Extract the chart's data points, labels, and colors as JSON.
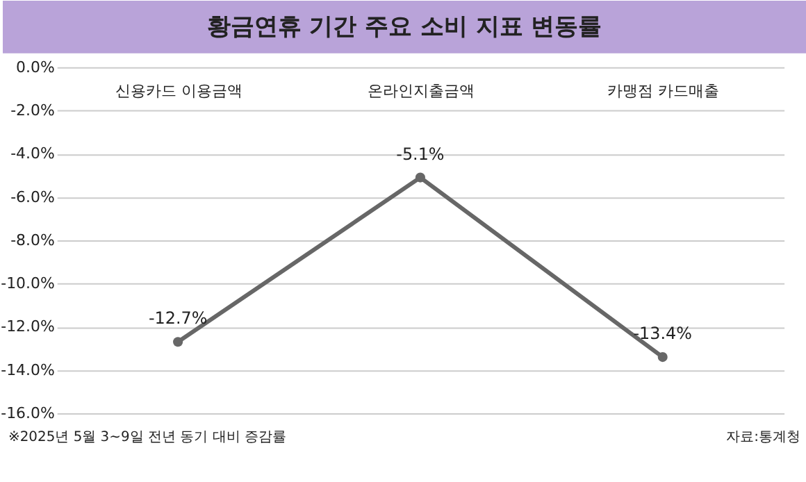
{
  "chart_data": {
    "type": "line",
    "title": "황금연휴 기간 주요 소비 지표 변동률",
    "categories": [
      "신용카드 이용금액",
      "온라인지출금액",
      "카맹점 카드매출"
    ],
    "series": [
      {
        "color": "#676767",
        "values": [
          -12.7,
          -5.1,
          -13.4
        ],
        "value_labels": [
          "-12.7%",
          "-5.1%",
          "-13.4%"
        ]
      }
    ],
    "ylim": [
      -16,
      0
    ],
    "yticks": [
      {
        "value": 0,
        "label": "0.0%"
      },
      {
        "value": -2,
        "label": "-2.0%"
      },
      {
        "value": -4,
        "label": "-4.0%"
      },
      {
        "value": -6,
        "label": "-6.0%"
      },
      {
        "value": -8,
        "label": "-8.0%"
      },
      {
        "value": -10,
        "label": "-10.0%"
      },
      {
        "value": -12,
        "label": "-12.0%"
      },
      {
        "value": -14,
        "label": "-14.0%"
      },
      {
        "value": -16,
        "label": "-16.0%"
      }
    ],
    "grid": "y",
    "marker": "circle",
    "line_style": "solid",
    "annotations": [
      "※2025년 5월 3~9일 전년 동기 대비 증감률",
      "자료:통계청"
    ]
  }
}
